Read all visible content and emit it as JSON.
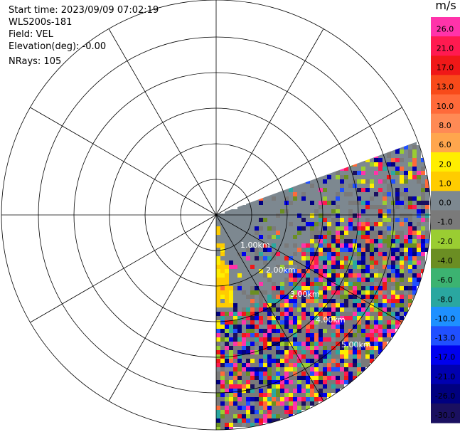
{
  "header": {
    "start_time": "Start time: 2023/09/09 07:02:19",
    "instrument": "WLS200s-181",
    "field": "Field: VEL",
    "elevation": "Elevation(deg): -0.00",
    "nrays": "NRays: 105"
  },
  "ppi": {
    "ring_labels": [
      "1.00km",
      "2.00km",
      "3.00km",
      "4.00km",
      "5.00km"
    ],
    "sector_start_deg": 70,
    "sector_end_deg": 180,
    "grid_rings": 6,
    "spokes": 12
  },
  "colorbar": {
    "unit": "m/s",
    "ticks": [
      "26.0",
      "21.0",
      "17.0",
      "13.0",
      "10.0",
      "8.0",
      "6.0",
      "2.0",
      "1.0",
      "0.0",
      "-1.0",
      "-2.0",
      "-4.0",
      "-6.0",
      "-8.0",
      "-10.0",
      "-13.0",
      "-17.0",
      "-21.0",
      "-26.0",
      "-30.0"
    ],
    "bands": [
      {
        "value": "26.0",
        "color": "#ff33aa"
      },
      {
        "value": "21.0",
        "color": "#ff1a50"
      },
      {
        "value": "17.0",
        "color": "#f01818"
      },
      {
        "value": "13.0",
        "color": "#f84a1a"
      },
      {
        "value": "10.0",
        "color": "#ff6a3a"
      },
      {
        "value": "8.0",
        "color": "#ff8a55"
      },
      {
        "value": "6.0",
        "color": "#ffa64d"
      },
      {
        "value": "2.0",
        "color": "#ffee00"
      },
      {
        "value": "1.0",
        "color": "#ffcc00"
      },
      {
        "value": "0.0",
        "color": "#7d8890"
      },
      {
        "value": "-1.0",
        "color": "#7a7a7a"
      },
      {
        "value": "-2.0",
        "color": "#9acd32"
      },
      {
        "value": "-4.0",
        "color": "#6b8e23"
      },
      {
        "value": "-6.0",
        "color": "#3cb371"
      },
      {
        "value": "-8.0",
        "color": "#2aa7a0"
      },
      {
        "value": "-10.0",
        "color": "#1e90ff"
      },
      {
        "value": "-13.0",
        "color": "#2050ff"
      },
      {
        "value": "-17.0",
        "color": "#0000ee"
      },
      {
        "value": "-21.0",
        "color": "#0000b0"
      },
      {
        "value": "-26.0",
        "color": "#000080"
      },
      {
        "value": "-30.0",
        "color": "#1a1060"
      }
    ]
  }
}
